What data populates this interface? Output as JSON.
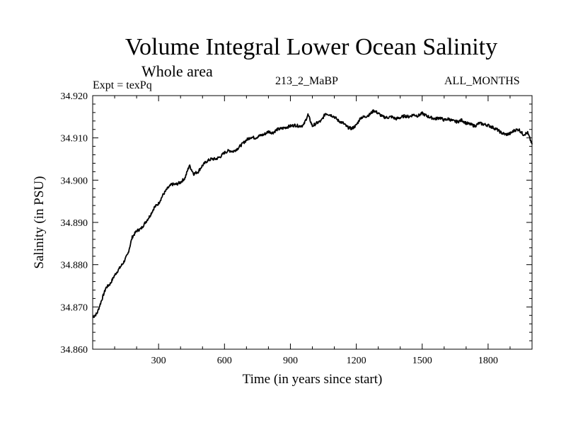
{
  "chart_data": {
    "type": "line",
    "title": "Volume Integral Lower Ocean Salinity",
    "subtitle": "Whole area",
    "annotations": {
      "left": "Expt = texPq",
      "center": "213_2_MaBP",
      "right": "ALL_MONTHS"
    },
    "xlabel": "Time (in years since start)",
    "ylabel": "Salinity (in PSU)",
    "xlim": [
      0,
      2000
    ],
    "ylim": [
      34.86,
      34.92
    ],
    "xticks": [
      300,
      600,
      900,
      1200,
      1500,
      1800
    ],
    "xtick_labels": [
      "300",
      "600",
      "900",
      "1200",
      "1500",
      "1800"
    ],
    "yticks": [
      34.86,
      34.87,
      34.88,
      34.89,
      34.9,
      34.91,
      34.92
    ],
    "ytick_labels": [
      "34.860",
      "34.870",
      "34.880",
      "34.890",
      "34.900",
      "34.910",
      "34.920"
    ],
    "grid": false,
    "series": [
      {
        "name": "salinity",
        "x": [
          0,
          20,
          40,
          60,
          80,
          100,
          120,
          140,
          160,
          180,
          200,
          220,
          240,
          260,
          280,
          300,
          320,
          340,
          360,
          380,
          400,
          420,
          440,
          460,
          480,
          500,
          520,
          540,
          560,
          580,
          600,
          620,
          640,
          660,
          680,
          700,
          720,
          740,
          760,
          780,
          800,
          820,
          840,
          860,
          880,
          900,
          920,
          940,
          960,
          980,
          1000,
          1020,
          1040,
          1060,
          1080,
          1100,
          1120,
          1140,
          1160,
          1180,
          1200,
          1220,
          1240,
          1260,
          1280,
          1300,
          1320,
          1340,
          1360,
          1380,
          1400,
          1420,
          1440,
          1460,
          1480,
          1500,
          1520,
          1540,
          1560,
          1580,
          1600,
          1620,
          1640,
          1660,
          1680,
          1700,
          1720,
          1740,
          1760,
          1780,
          1800,
          1820,
          1840,
          1860,
          1880,
          1900,
          1920,
          1940,
          1960,
          1980,
          2000
        ],
        "values": [
          34.8675,
          34.8685,
          34.8715,
          34.8745,
          34.8755,
          34.8775,
          34.879,
          34.8805,
          34.8825,
          34.8865,
          34.888,
          34.8885,
          34.89,
          34.8915,
          34.8935,
          34.8945,
          34.8965,
          34.898,
          34.899,
          34.899,
          34.8995,
          34.9005,
          34.9035,
          34.9015,
          34.902,
          34.9035,
          34.9045,
          34.905,
          34.905,
          34.9055,
          34.9065,
          34.907,
          34.9068,
          34.9075,
          34.9085,
          34.9095,
          34.9102,
          34.91,
          34.9105,
          34.9108,
          34.9115,
          34.9112,
          34.912,
          34.9122,
          34.9125,
          34.9128,
          34.913,
          34.9128,
          34.913,
          34.9155,
          34.9128,
          34.9135,
          34.914,
          34.9158,
          34.9155,
          34.915,
          34.914,
          34.9135,
          34.9125,
          34.9122,
          34.913,
          34.9148,
          34.915,
          34.9155,
          34.9165,
          34.9158,
          34.915,
          34.9148,
          34.915,
          34.9145,
          34.9148,
          34.9152,
          34.915,
          34.9155,
          34.9152,
          34.9158,
          34.9152,
          34.9148,
          34.9145,
          34.9148,
          34.9142,
          34.9145,
          34.914,
          34.9138,
          34.9142,
          34.9135,
          34.9132,
          34.9128,
          34.9135,
          34.9132,
          34.913,
          34.9125,
          34.912,
          34.9112,
          34.9108,
          34.911,
          34.9118,
          34.912,
          34.9108,
          34.9112,
          34.9085
        ]
      }
    ]
  }
}
